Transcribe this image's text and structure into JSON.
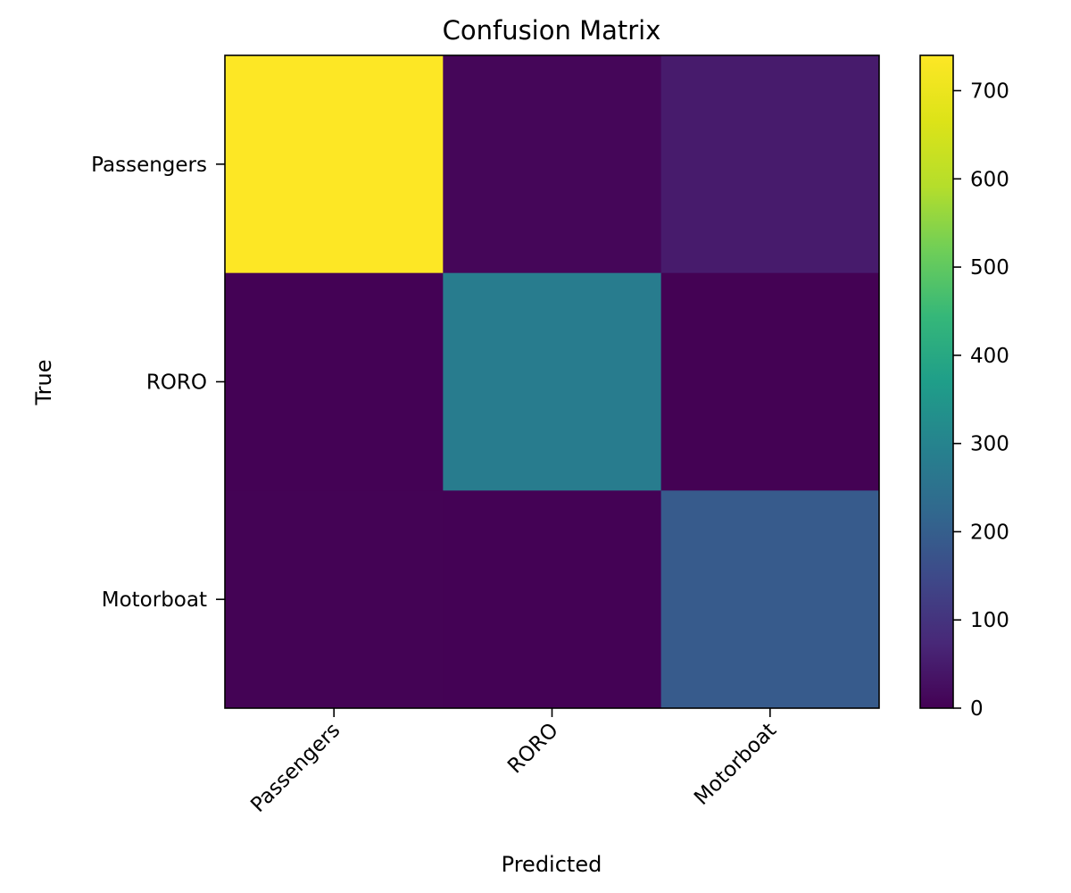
{
  "chart_data": {
    "type": "heatmap",
    "title": "Confusion Matrix",
    "xlabel": "Predicted",
    "ylabel": "True",
    "x_categories": [
      "Passengers",
      "RORO",
      "Motorboat"
    ],
    "y_categories": [
      "Passengers",
      "RORO",
      "Motorboat"
    ],
    "values": [
      [
        740,
        10,
        50
      ],
      [
        2,
        280,
        1
      ],
      [
        3,
        2,
        190
      ]
    ],
    "colormap": "viridis",
    "colorbar": {
      "range": [
        0,
        740
      ],
      "ticks": [
        0,
        100,
        200,
        300,
        400,
        500,
        600,
        700
      ],
      "tick_labels": [
        "0",
        "100",
        "200",
        "300",
        "400",
        "500",
        "600",
        "700"
      ]
    }
  }
}
